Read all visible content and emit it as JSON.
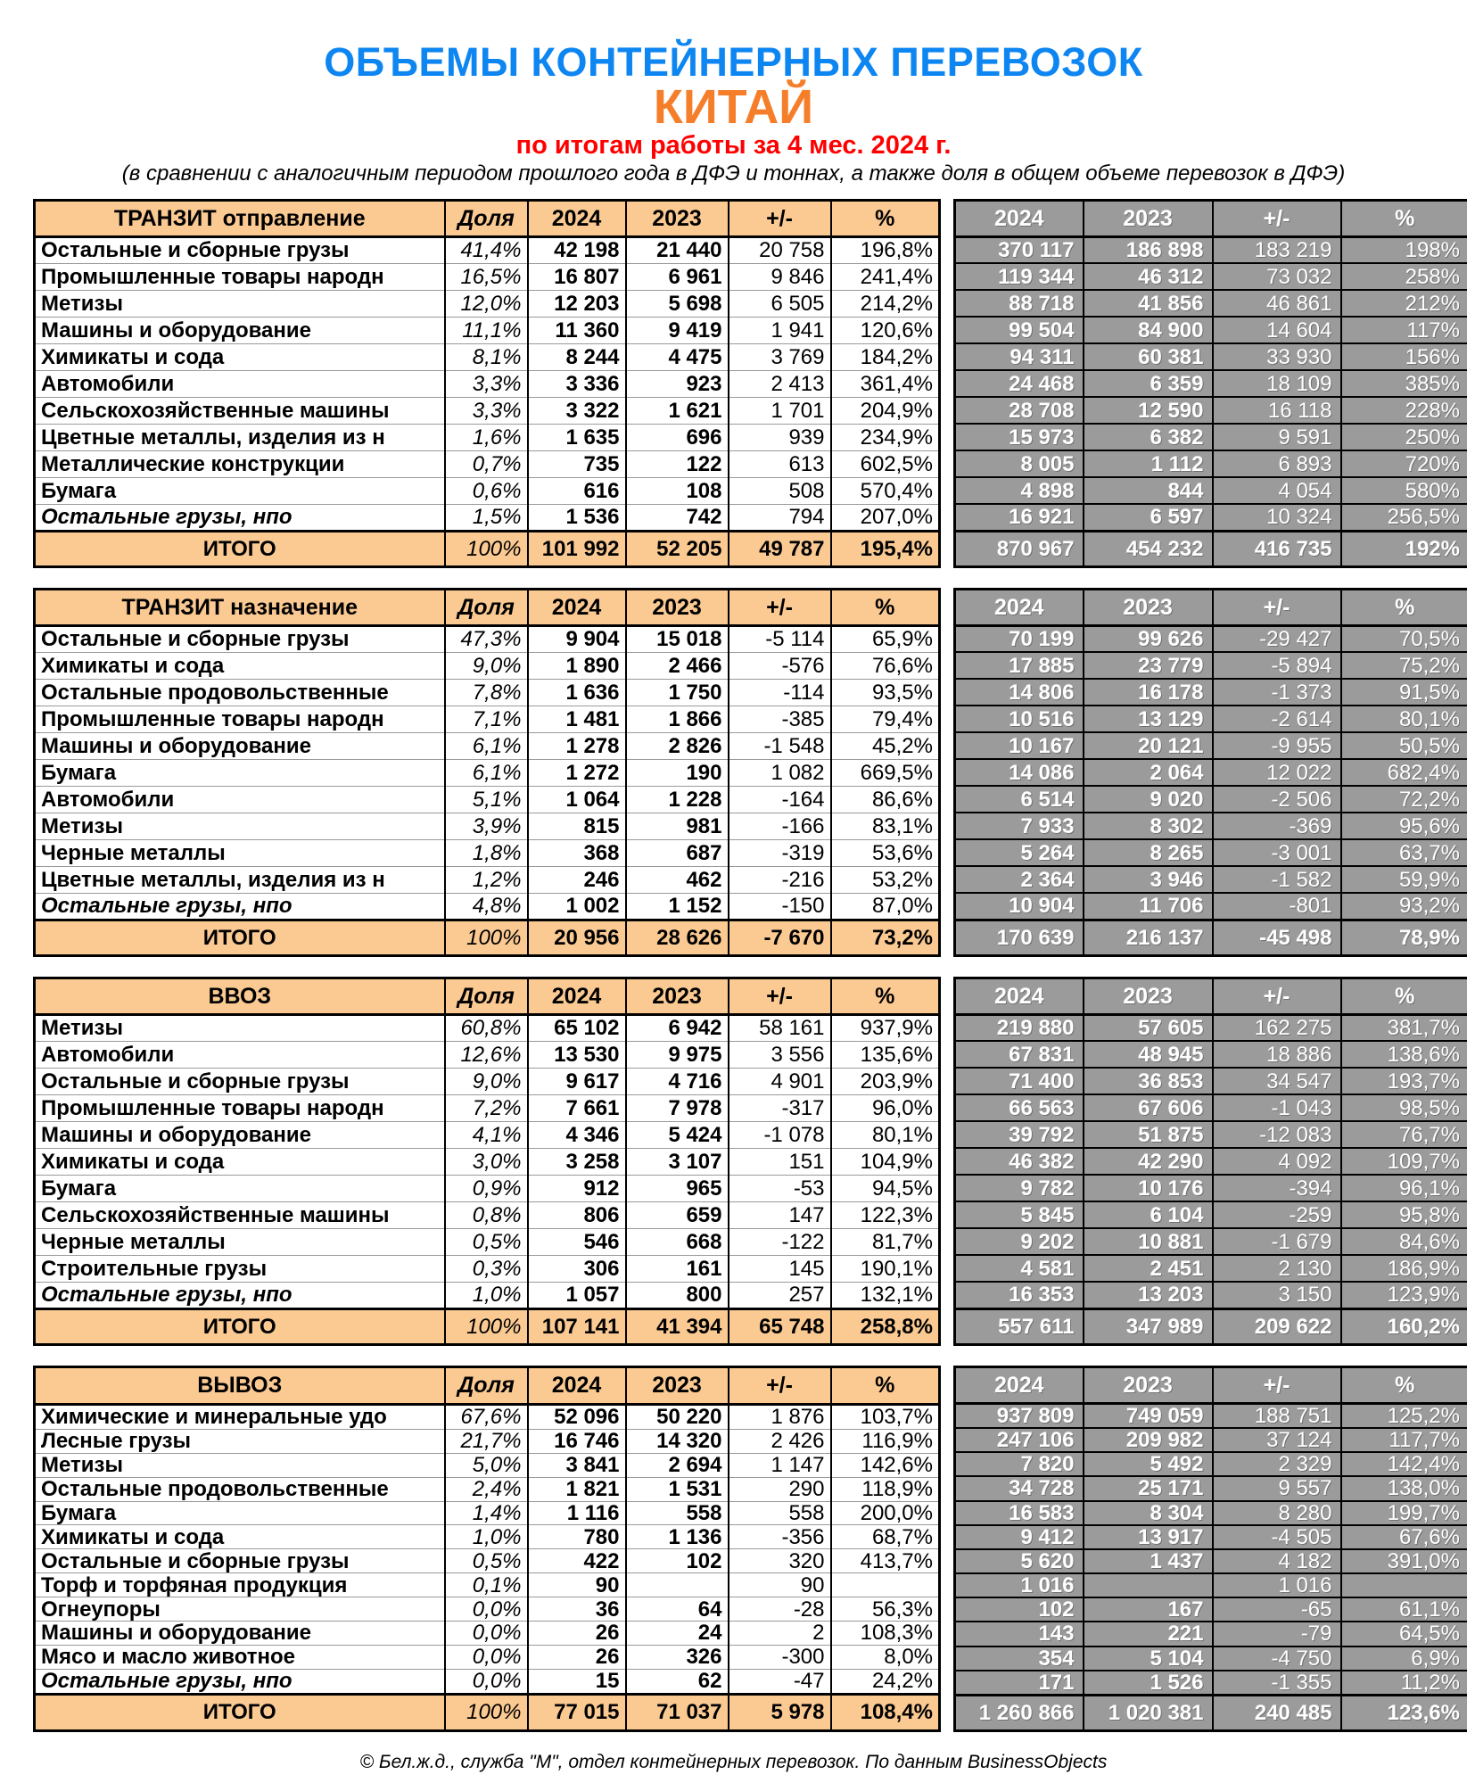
{
  "header": {
    "title": "ОБЪЕМЫ  КОНТЕЙНЕРНЫХ ПЕРЕВОЗОК",
    "subtitle": "КИТАЙ",
    "period": "по итогам работы за 4 мес. 2024 г.",
    "note": "(в сравнении с аналогичным периодом прошлого года в ДФЭ и  тоннах, а также доля в общем объеме перевозок в ДФЭ)"
  },
  "columns": {
    "share": "Доля",
    "y2024": "2024",
    "y2023": "2023",
    "diff": "+/-",
    "pct": "%"
  },
  "totals_label": "ИТОГО",
  "total_share": "100%",
  "footer": "©  Бел.ж.д.,  служба \"М\", отдел контейнерных перевозок. По данным BusinessObjects",
  "colors": {
    "accent_peach": "#fbca93",
    "accent_gray": "#9b9b9b",
    "title_blue": "#0d86f2",
    "title_orange": "#f57e2a",
    "title_red": "#ff0000"
  },
  "tables": [
    {
      "title": "ТРАНЗИТ отправление",
      "rows": [
        {
          "name": "Остальные и сборные грузы",
          "share": "41,4%",
          "dfe": [
            "42 198",
            "21 440",
            "20 758",
            "196,8%"
          ],
          "tons": [
            "370 117",
            "186 898",
            "183 219",
            "198%"
          ],
          "italic": false
        },
        {
          "name": "Промышленные товары народн",
          "share": "16,5%",
          "dfe": [
            "16 807",
            "6 961",
            "9 846",
            "241,4%"
          ],
          "tons": [
            "119 344",
            "46 312",
            "73 032",
            "258%"
          ],
          "italic": false
        },
        {
          "name": "Метизы",
          "share": "12,0%",
          "dfe": [
            "12 203",
            "5 698",
            "6 505",
            "214,2%"
          ],
          "tons": [
            "88 718",
            "41 856",
            "46 861",
            "212%"
          ],
          "italic": false
        },
        {
          "name": "Машины и оборудование",
          "share": "11,1%",
          "dfe": [
            "11 360",
            "9 419",
            "1 941",
            "120,6%"
          ],
          "tons": [
            "99 504",
            "84 900",
            "14 604",
            "117%"
          ],
          "italic": false
        },
        {
          "name": "Химикаты и сода",
          "share": "8,1%",
          "dfe": [
            "8 244",
            "4 475",
            "3 769",
            "184,2%"
          ],
          "tons": [
            "94 311",
            "60 381",
            "33 930",
            "156%"
          ],
          "italic": false
        },
        {
          "name": "Автомобили",
          "share": "3,3%",
          "dfe": [
            "3 336",
            "923",
            "2 413",
            "361,4%"
          ],
          "tons": [
            "24 468",
            "6 359",
            "18 109",
            "385%"
          ],
          "italic": false
        },
        {
          "name": "Сельскохозяйственные машины",
          "share": "3,3%",
          "dfe": [
            "3 322",
            "1 621",
            "1 701",
            "204,9%"
          ],
          "tons": [
            "28 708",
            "12 590",
            "16 118",
            "228%"
          ],
          "italic": false
        },
        {
          "name": "Цветные металлы, изделия из н",
          "share": "1,6%",
          "dfe": [
            "1 635",
            "696",
            "939",
            "234,9%"
          ],
          "tons": [
            "15 973",
            "6 382",
            "9 591",
            "250%"
          ],
          "italic": false
        },
        {
          "name": "Металлические конструкции",
          "share": "0,7%",
          "dfe": [
            "735",
            "122",
            "613",
            "602,5%"
          ],
          "tons": [
            "8 005",
            "1 112",
            "6 893",
            "720%"
          ],
          "italic": false
        },
        {
          "name": "Бумага",
          "share": "0,6%",
          "dfe": [
            "616",
            "108",
            "508",
            "570,4%"
          ],
          "tons": [
            "4 898",
            "844",
            "4 054",
            "580%"
          ],
          "italic": false
        },
        {
          "name": "Остальные грузы, нпо",
          "share": "1,5%",
          "dfe": [
            "1 536",
            "742",
            "794",
            "207,0%"
          ],
          "tons": [
            "16 921",
            "6 597",
            "10 324",
            "256,5%"
          ],
          "italic": true
        }
      ],
      "total": {
        "dfe": [
          "101 992",
          "52 205",
          "49 787",
          "195,4%"
        ],
        "tons": [
          "870 967",
          "454 232",
          "416 735",
          "192%"
        ]
      }
    },
    {
      "title": "ТРАНЗИТ назначение",
      "rows": [
        {
          "name": "Остальные и сборные грузы",
          "share": "47,3%",
          "dfe": [
            "9 904",
            "15 018",
            "-5 114",
            "65,9%"
          ],
          "tons": [
            "70 199",
            "99 626",
            "-29 427",
            "70,5%"
          ],
          "italic": false
        },
        {
          "name": "Химикаты и сода",
          "share": "9,0%",
          "dfe": [
            "1 890",
            "2 466",
            "-576",
            "76,6%"
          ],
          "tons": [
            "17 885",
            "23 779",
            "-5 894",
            "75,2%"
          ],
          "italic": false
        },
        {
          "name": "Остальные продовольственные",
          "share": "7,8%",
          "dfe": [
            "1 636",
            "1 750",
            "-114",
            "93,5%"
          ],
          "tons": [
            "14 806",
            "16 178",
            "-1 373",
            "91,5%"
          ],
          "italic": false
        },
        {
          "name": "Промышленные товары народн",
          "share": "7,1%",
          "dfe": [
            "1 481",
            "1 866",
            "-385",
            "79,4%"
          ],
          "tons": [
            "10 516",
            "13 129",
            "-2 614",
            "80,1%"
          ],
          "italic": false
        },
        {
          "name": "Машины и оборудование",
          "share": "6,1%",
          "dfe": [
            "1 278",
            "2 826",
            "-1 548",
            "45,2%"
          ],
          "tons": [
            "10 167",
            "20 121",
            "-9 955",
            "50,5%"
          ],
          "italic": false
        },
        {
          "name": "Бумага",
          "share": "6,1%",
          "dfe": [
            "1 272",
            "190",
            "1 082",
            "669,5%"
          ],
          "tons": [
            "14 086",
            "2 064",
            "12 022",
            "682,4%"
          ],
          "italic": false
        },
        {
          "name": "Автомобили",
          "share": "5,1%",
          "dfe": [
            "1 064",
            "1 228",
            "-164",
            "86,6%"
          ],
          "tons": [
            "6 514",
            "9 020",
            "-2 506",
            "72,2%"
          ],
          "italic": false
        },
        {
          "name": "Метизы",
          "share": "3,9%",
          "dfe": [
            "815",
            "981",
            "-166",
            "83,1%"
          ],
          "tons": [
            "7 933",
            "8 302",
            "-369",
            "95,6%"
          ],
          "italic": false
        },
        {
          "name": "Черные металлы",
          "share": "1,8%",
          "dfe": [
            "368",
            "687",
            "-319",
            "53,6%"
          ],
          "tons": [
            "5 264",
            "8 265",
            "-3 001",
            "63,7%"
          ],
          "italic": false
        },
        {
          "name": "Цветные металлы, изделия из н",
          "share": "1,2%",
          "dfe": [
            "246",
            "462",
            "-216",
            "53,2%"
          ],
          "tons": [
            "2 364",
            "3 946",
            "-1 582",
            "59,9%"
          ],
          "italic": false
        },
        {
          "name": "Остальные грузы, нпо",
          "share": "4,8%",
          "dfe": [
            "1 002",
            "1 152",
            "-150",
            "87,0%"
          ],
          "tons": [
            "10 904",
            "11 706",
            "-801",
            "93,2%"
          ],
          "italic": true
        }
      ],
      "total": {
        "dfe": [
          "20 956",
          "28 626",
          "-7 670",
          "73,2%"
        ],
        "tons": [
          "170 639",
          "216 137",
          "-45 498",
          "78,9%"
        ]
      }
    },
    {
      "title": "ВВОЗ",
      "rows": [
        {
          "name": "Метизы",
          "share": "60,8%",
          "dfe": [
            "65 102",
            "6 942",
            "58 161",
            "937,9%"
          ],
          "tons": [
            "219 880",
            "57 605",
            "162 275",
            "381,7%"
          ],
          "italic": false
        },
        {
          "name": "Автомобили",
          "share": "12,6%",
          "dfe": [
            "13 530",
            "9 975",
            "3 556",
            "135,6%"
          ],
          "tons": [
            "67 831",
            "48 945",
            "18 886",
            "138,6%"
          ],
          "italic": false
        },
        {
          "name": "Остальные и сборные грузы",
          "share": "9,0%",
          "dfe": [
            "9 617",
            "4 716",
            "4 901",
            "203,9%"
          ],
          "tons": [
            "71 400",
            "36 853",
            "34 547",
            "193,7%"
          ],
          "italic": false
        },
        {
          "name": "Промышленные товары народн",
          "share": "7,2%",
          "dfe": [
            "7 661",
            "7 978",
            "-317",
            "96,0%"
          ],
          "tons": [
            "66 563",
            "67 606",
            "-1 043",
            "98,5%"
          ],
          "italic": false
        },
        {
          "name": "Машины и оборудование",
          "share": "4,1%",
          "dfe": [
            "4 346",
            "5 424",
            "-1 078",
            "80,1%"
          ],
          "tons": [
            "39 792",
            "51 875",
            "-12 083",
            "76,7%"
          ],
          "italic": false
        },
        {
          "name": "Химикаты и сода",
          "share": "3,0%",
          "dfe": [
            "3 258",
            "3 107",
            "151",
            "104,9%"
          ],
          "tons": [
            "46 382",
            "42 290",
            "4 092",
            "109,7%"
          ],
          "italic": false
        },
        {
          "name": "Бумага",
          "share": "0,9%",
          "dfe": [
            "912",
            "965",
            "-53",
            "94,5%"
          ],
          "tons": [
            "9 782",
            "10 176",
            "-394",
            "96,1%"
          ],
          "italic": false
        },
        {
          "name": "Сельскохозяйственные машины",
          "share": "0,8%",
          "dfe": [
            "806",
            "659",
            "147",
            "122,3%"
          ],
          "tons": [
            "5 845",
            "6 104",
            "-259",
            "95,8%"
          ],
          "italic": false
        },
        {
          "name": "Черные металлы",
          "share": "0,5%",
          "dfe": [
            "546",
            "668",
            "-122",
            "81,7%"
          ],
          "tons": [
            "9 202",
            "10 881",
            "-1 679",
            "84,6%"
          ],
          "italic": false
        },
        {
          "name": "Строительные грузы",
          "share": "0,3%",
          "dfe": [
            "306",
            "161",
            "145",
            "190,1%"
          ],
          "tons": [
            "4 581",
            "2 451",
            "2 130",
            "186,9%"
          ],
          "italic": false
        },
        {
          "name": "Остальные грузы, нпо",
          "share": "1,0%",
          "dfe": [
            "1 057",
            "800",
            "257",
            "132,1%"
          ],
          "tons": [
            "16 353",
            "13 203",
            "3 150",
            "123,9%"
          ],
          "italic": true
        }
      ],
      "total": {
        "dfe": [
          "107 141",
          "41 394",
          "65 748",
          "258,8%"
        ],
        "tons": [
          "557 611",
          "347 989",
          "209 622",
          "160,2%"
        ]
      }
    },
    {
      "title": "ВЫВОЗ",
      "rows": [
        {
          "name": "Химические и минеральные удо",
          "share": "67,6%",
          "dfe": [
            "52 096",
            "50 220",
            "1 876",
            "103,7%"
          ],
          "tons": [
            "937 809",
            "749 059",
            "188 751",
            "125,2%"
          ],
          "italic": false
        },
        {
          "name": "Лесные грузы",
          "share": "21,7%",
          "dfe": [
            "16 746",
            "14 320",
            "2 426",
            "116,9%"
          ],
          "tons": [
            "247 106",
            "209 982",
            "37 124",
            "117,7%"
          ],
          "italic": false
        },
        {
          "name": "Метизы",
          "share": "5,0%",
          "dfe": [
            "3 841",
            "2 694",
            "1 147",
            "142,6%"
          ],
          "tons": [
            "7 820",
            "5 492",
            "2 329",
            "142,4%"
          ],
          "italic": false
        },
        {
          "name": "Остальные продовольственные",
          "share": "2,4%",
          "dfe": [
            "1 821",
            "1 531",
            "290",
            "118,9%"
          ],
          "tons": [
            "34 728",
            "25 171",
            "9 557",
            "138,0%"
          ],
          "italic": false
        },
        {
          "name": "Бумага",
          "share": "1,4%",
          "dfe": [
            "1 116",
            "558",
            "558",
            "200,0%"
          ],
          "tons": [
            "16 583",
            "8 304",
            "8 280",
            "199,7%"
          ],
          "italic": false
        },
        {
          "name": "Химикаты и сода",
          "share": "1,0%",
          "dfe": [
            "780",
            "1 136",
            "-356",
            "68,7%"
          ],
          "tons": [
            "9 412",
            "13 917",
            "-4 505",
            "67,6%"
          ],
          "italic": false
        },
        {
          "name": "Остальные и сборные грузы",
          "share": "0,5%",
          "dfe": [
            "422",
            "102",
            "320",
            "413,7%"
          ],
          "tons": [
            "5 620",
            "1 437",
            "4 182",
            "391,0%"
          ],
          "italic": false
        },
        {
          "name": "Торф и торфяная продукция",
          "share": "0,1%",
          "dfe": [
            "90",
            "",
            "90",
            ""
          ],
          "tons": [
            "1 016",
            "",
            "1 016",
            ""
          ],
          "italic": false
        },
        {
          "name": "Огнеупоры",
          "share": "0,0%",
          "dfe": [
            "36",
            "64",
            "-28",
            "56,3%"
          ],
          "tons": [
            "102",
            "167",
            "-65",
            "61,1%"
          ],
          "italic": false
        },
        {
          "name": "Машины и оборудование",
          "share": "0,0%",
          "dfe": [
            "26",
            "24",
            "2",
            "108,3%"
          ],
          "tons": [
            "143",
            "221",
            "-79",
            "64,5%"
          ],
          "italic": false
        },
        {
          "name": "Мясо и масло животное",
          "share": "0,0%",
          "dfe": [
            "26",
            "326",
            "-300",
            "8,0%"
          ],
          "tons": [
            "354",
            "5 104",
            "-4 750",
            "6,9%"
          ],
          "italic": false
        },
        {
          "name": "Остальные грузы, нпо",
          "share": "0,0%",
          "dfe": [
            "15",
            "62",
            "-47",
            "24,2%"
          ],
          "tons": [
            "171",
            "1 526",
            "-1 355",
            "11,2%"
          ],
          "italic": true
        }
      ],
      "total": {
        "dfe": [
          "77 015",
          "71 037",
          "5 978",
          "108,4%"
        ],
        "tons": [
          "1 260 866",
          "1 020 381",
          "240 485",
          "123,6%"
        ]
      }
    }
  ]
}
